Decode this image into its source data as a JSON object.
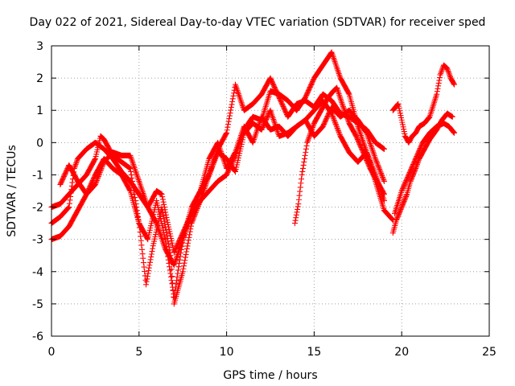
{
  "chart_data": {
    "type": "scatter",
    "title": "Day 022 of 2021, Sidereal Day-to-day VTEC variation (SDTVAR) for receiver sped",
    "xlabel": "GPS time / hours",
    "ylabel": "SDTVAR / TECUs",
    "xlim": [
      0,
      25
    ],
    "ylim": [
      -6,
      3
    ],
    "xticks": [
      "0",
      "5",
      "10",
      "15",
      "20",
      "25"
    ],
    "yticks": [
      "-6",
      "-5",
      "-4",
      "-3",
      "-2",
      "-1",
      "0",
      "1",
      "2",
      "3"
    ],
    "grid": true,
    "legend": false,
    "marker": "plus",
    "color": "#ff0000",
    "series": [
      {
        "x": [
          0.0,
          0.5,
          1.0,
          1.5,
          2.0,
          2.5,
          2.8,
          3.0,
          3.5,
          4.0,
          4.5,
          5.0,
          5.4,
          5.8,
          6.3,
          6.8,
          7.0,
          7.5,
          8.0,
          8.5,
          9.0,
          9.5,
          10.0,
          10.5,
          11.0,
          11.5,
          12.0,
          12.5,
          13.0,
          13.5,
          14.0,
          14.5,
          15.0,
          15.5,
          16.0,
          16.5,
          17.0,
          17.5,
          18.0,
          18.5,
          19.0
        ],
        "y": [
          -2.0,
          -1.9,
          -1.6,
          -1.3,
          -1.0,
          -0.5,
          0.2,
          0.1,
          -0.4,
          -0.6,
          -0.8,
          -2.5,
          -4.4,
          -3.2,
          -2.0,
          -3.5,
          -5.0,
          -4.0,
          -2.5,
          -1.8,
          -1.0,
          -0.2,
          0.3,
          1.8,
          1.0,
          1.2,
          1.5,
          2.0,
          1.4,
          0.8,
          1.2,
          1.3,
          1.1,
          1.5,
          1.3,
          0.9,
          0.8,
          0.6,
          0.4,
          0.0,
          -0.2
        ]
      },
      {
        "x": [
          0.0,
          0.5,
          1.0,
          1.5,
          2.0,
          2.5,
          3.0,
          3.5,
          4.0,
          4.5,
          5.0,
          5.5,
          6.0,
          6.5,
          7.0,
          7.5,
          8.0,
          8.5,
          9.0,
          9.5,
          10.0,
          10.5,
          11.0,
          11.5,
          12.0,
          12.5,
          13.0,
          13.5,
          14.0,
          14.5,
          15.0,
          15.5,
          16.0,
          16.5,
          17.0,
          17.5,
          18.0,
          18.5,
          19.0
        ],
        "y": [
          -3.0,
          -2.9,
          -2.6,
          -2.1,
          -1.6,
          -1.0,
          -0.5,
          -0.8,
          -1.0,
          -1.5,
          -2.5,
          -3.0,
          -1.8,
          -3.0,
          -4.8,
          -3.0,
          -2.2,
          -1.5,
          -0.5,
          0.0,
          -0.8,
          -0.3,
          0.5,
          0.0,
          0.8,
          0.4,
          0.5,
          0.2,
          0.5,
          0.7,
          1.0,
          1.3,
          0.9,
          0.2,
          -0.3,
          -0.6,
          -0.3,
          -1.0,
          -1.8
        ]
      },
      {
        "x": [
          0.0,
          0.5,
          1.0,
          1.3,
          1.5,
          2.0,
          2.5,
          3.0,
          3.5,
          4.0,
          4.5,
          5.0,
          5.5,
          6.0,
          6.3,
          6.6,
          7.0,
          7.5,
          8.0,
          8.5,
          9.0,
          9.5,
          10.0,
          10.5,
          11.0,
          11.5,
          12.0,
          12.5,
          13.0,
          13.5,
          14.0,
          14.5,
          15.0,
          15.5,
          16.0,
          16.5,
          17.0,
          17.5,
          18.0,
          18.5,
          19.0,
          19.5
        ],
        "y": [
          -2.5,
          -2.3,
          -2.0,
          -0.8,
          -0.5,
          -0.2,
          0.0,
          -0.2,
          -0.5,
          -0.9,
          -1.2,
          -1.6,
          -2.0,
          -1.5,
          -1.6,
          -2.4,
          -3.4,
          -2.8,
          -2.2,
          -1.8,
          -1.5,
          -1.2,
          -1.0,
          -0.4,
          0.4,
          0.8,
          0.7,
          1.6,
          1.5,
          1.3,
          1.0,
          1.4,
          2.0,
          2.4,
          2.8,
          2.0,
          1.5,
          0.5,
          -0.3,
          -1.2,
          -2.1,
          -2.4
        ]
      },
      {
        "x": [
          0.5,
          1.0,
          1.5,
          2.0,
          2.5,
          3.0,
          3.5,
          4.0,
          4.5,
          5.0,
          5.5,
          6.0,
          6.5,
          7.0,
          7.5,
          8.0,
          8.5,
          9.0,
          9.5,
          10.0,
          10.5,
          11.0,
          11.5,
          12.0,
          12.5,
          13.0,
          13.5,
          14.0,
          14.5,
          15.0,
          15.5,
          16.0,
          16.5,
          17.0,
          17.5,
          18.0,
          18.5,
          19.0
        ],
        "y": [
          -1.3,
          -0.7,
          -1.2,
          -1.6,
          -1.3,
          -0.6,
          -0.3,
          -0.4,
          -0.4,
          -1.2,
          -2.0,
          -2.5,
          -3.3,
          -3.8,
          -3.0,
          -2.0,
          -1.5,
          -1.0,
          -0.3,
          -0.5,
          -0.9,
          0.3,
          0.6,
          0.4,
          1.0,
          0.2,
          0.3,
          0.5,
          0.7,
          0.2,
          0.5,
          1.1,
          0.8,
          1.0,
          0.7,
          0.3,
          -0.5,
          -1.2
        ]
      },
      {
        "x": [
          13.9,
          14.1,
          14.3,
          14.6,
          15.0,
          15.4,
          15.8,
          16.1,
          16.3,
          16.6,
          17.0,
          17.4,
          17.8,
          18.2,
          18.6,
          19.0
        ],
        "y": [
          -2.5,
          -1.9,
          -1.0,
          0.0,
          0.6,
          1.0,
          1.4,
          1.6,
          1.7,
          1.2,
          0.6,
          0.2,
          -0.3,
          -0.8,
          -1.2,
          -1.6
        ]
      },
      {
        "x": [
          19.5,
          19.7,
          20.0,
          20.3,
          20.5,
          20.8,
          21.0,
          21.3,
          21.6,
          22.0,
          22.3,
          22.6,
          22.9
        ],
        "y": [
          -2.8,
          -2.4,
          -2.0,
          -1.6,
          -1.2,
          -0.8,
          -0.5,
          -0.2,
          0.1,
          0.4,
          0.7,
          0.9,
          0.8
        ]
      },
      {
        "x": [
          19.5,
          19.8,
          20.0,
          20.2,
          20.4,
          20.6,
          20.8,
          21.0,
          21.3,
          21.6,
          22.0,
          22.2,
          22.4,
          22.6,
          22.8,
          23.0
        ],
        "y": [
          1.0,
          1.2,
          0.7,
          0.2,
          0.0,
          0.2,
          0.3,
          0.5,
          0.6,
          0.8,
          1.5,
          2.1,
          2.4,
          2.3,
          2.0,
          1.8
        ]
      },
      {
        "x": [
          19.6,
          20.0,
          20.4,
          20.8,
          21.2,
          21.6,
          22.0,
          22.4,
          22.7,
          23.0
        ],
        "y": [
          -2.2,
          -1.5,
          -1.0,
          -0.5,
          0.0,
          0.3,
          0.5,
          0.6,
          0.5,
          0.3
        ]
      }
    ]
  }
}
